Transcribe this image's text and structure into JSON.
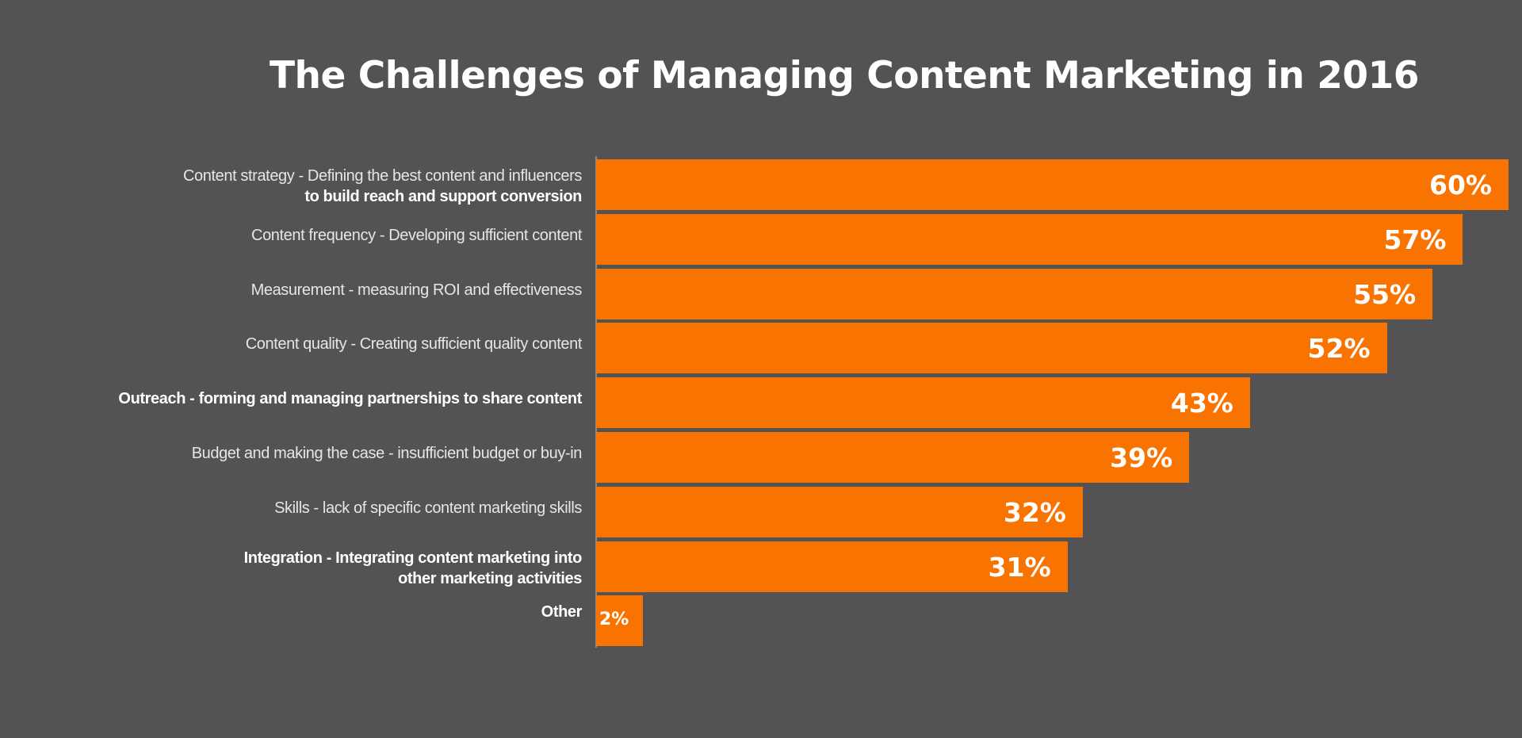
{
  "chart_data": {
    "type": "bar",
    "orientation": "horizontal",
    "title": "The Challenges of Managing Content Marketing in 2016",
    "categories": [
      [
        "Content strategy - Defining the best content and influencers",
        "to build reach and support conversion"
      ],
      [
        "Content frequency - Developing sufficient content"
      ],
      [
        "Measurement - measuring ROI and effectiveness"
      ],
      [
        "Content quality - Creating sufficient quality content"
      ],
      [
        "Outreach - forming and managing partnerships to share content"
      ],
      [
        "Budget and making the case - insufficient budget or buy-in"
      ],
      [
        "Skills - lack of specific content marketing skills"
      ],
      [
        "Integration - Integrating content marketing into",
        "other marketing activities"
      ],
      [
        "Other"
      ]
    ],
    "values": [
      60,
      57,
      55,
      52,
      43,
      39,
      32,
      31,
      2
    ],
    "data_labels": [
      "60%",
      "57%",
      "55%",
      "52%",
      "43%",
      "39%",
      "32%",
      "31%",
      "2%"
    ],
    "bold_lines": [
      [
        1
      ],
      [],
      [],
      [],
      [
        0
      ],
      [],
      [],
      [
        0,
        1
      ],
      [
        0
      ]
    ],
    "unit": "%",
    "xlim": [
      0,
      60
    ],
    "grid": false,
    "legend": "none",
    "colors": {
      "background": "#535355",
      "bar": "#f97300",
      "text": "#ffffff"
    }
  }
}
